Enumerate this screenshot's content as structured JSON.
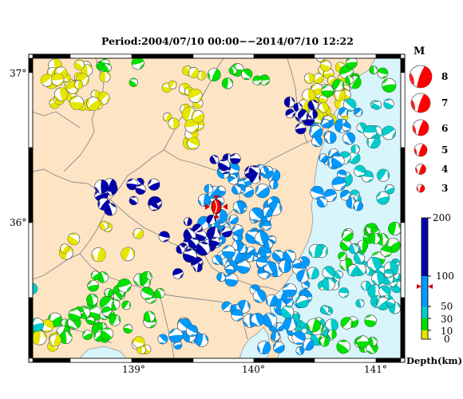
{
  "title": "Period:2004/07/10 00:00−−2014/07/10 12:22",
  "axes": {
    "lat_labels": [
      "37°",
      "36°"
    ],
    "lon_labels": [
      "139°",
      "140°",
      "141°"
    ]
  },
  "magnitude_legend": {
    "header": "M",
    "labels": [
      "8",
      "7",
      "6",
      "5",
      "4",
      "3"
    ]
  },
  "depth_scale": {
    "unit_label": "Depth(km)",
    "tick_labels": [
      "200",
      "100",
      "50",
      "30",
      "10",
      "0"
    ],
    "colors": {
      "0-10": "#e6e600",
      "10-30": "#00e000",
      "30-50": "#00cccc",
      "50-100": "#0099ff",
      "100-200": "#0000aa"
    }
  },
  "colors": {
    "land": "#fde4c4",
    "sea": "#d8f5fb",
    "main_event": "#ff0000",
    "marker": "#cc0000",
    "border": "#888888"
  }
}
